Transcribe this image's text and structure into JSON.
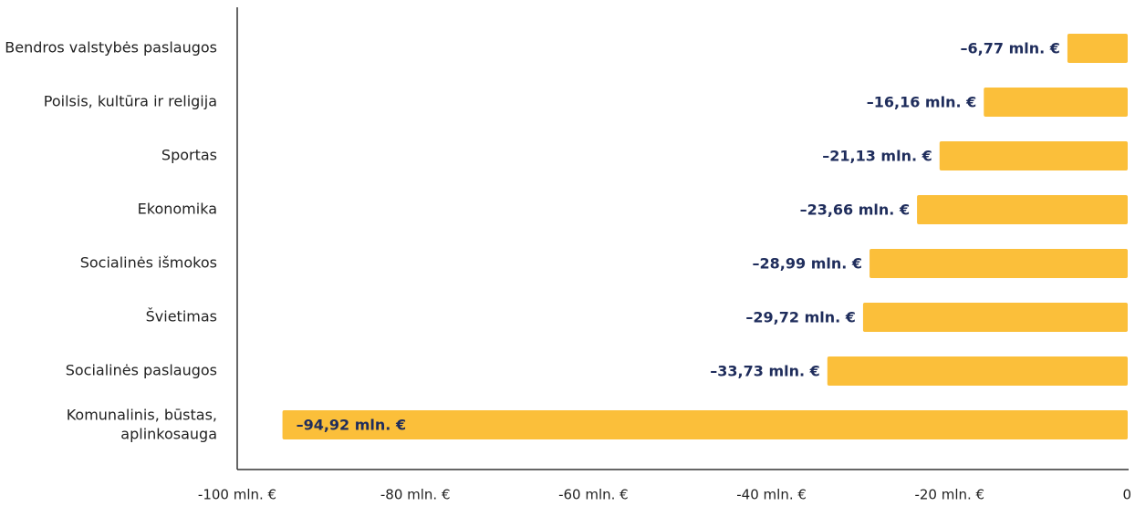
{
  "chart_data": {
    "type": "bar",
    "orientation": "horizontal",
    "categories": [
      "Bendros valstybės paslaugos",
      "Poilsis, kultūra ir religija",
      "Sportas",
      "Ekonomika",
      "Socialinės išmokos",
      "Švietimas",
      "Socialinės paslaugos",
      "Komunalinis, būstas, aplinkosauga"
    ],
    "values": [
      -6.77,
      -16.16,
      -21.13,
      -23.66,
      -28.99,
      -29.72,
      -33.73,
      -94.92
    ],
    "value_labels": [
      "–6,77 mln. €",
      "–16,16 mln. €",
      "–21,13 mln. €",
      "–23,66 mln. €",
      "–28,99 mln. €",
      "–29,72 mln. €",
      "–33,73 mln. €",
      "–94,92 mln. €"
    ],
    "color": "#fbbf3a",
    "xlim": [
      -100,
      0
    ],
    "xticks": [
      {
        "value": -100,
        "label": "-100 mln. €"
      },
      {
        "value": -80,
        "label": "-80 mln. €"
      },
      {
        "value": -60,
        "label": "-60 mln. €"
      },
      {
        "value": -40,
        "label": "-40 mln. €"
      },
      {
        "value": -20,
        "label": "-20 mln. €"
      },
      0
    ],
    "grid": false
  }
}
